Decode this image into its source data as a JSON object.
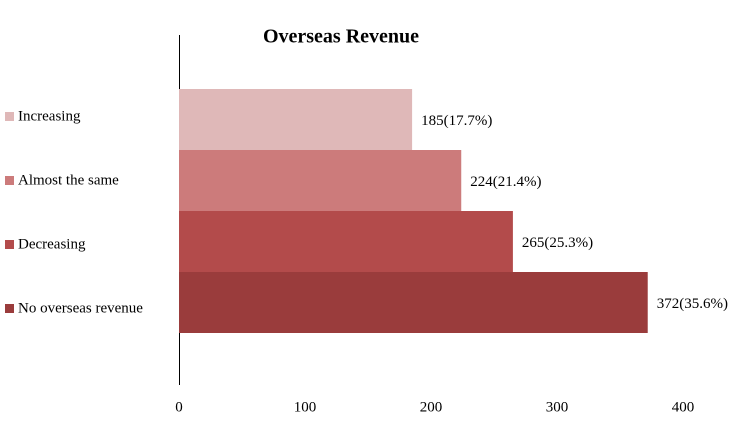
{
  "chart_data": {
    "type": "barh",
    "title": "Overseas Revenue",
    "categories": [
      "Increasing",
      "Almost the same",
      "Decreasing",
      "No overseas revenue"
    ],
    "values": [
      185,
      224,
      265,
      372
    ],
    "value_labels": [
      "185(17.7%)",
      "224(21.4%)",
      "265(25.3%)",
      "372(35.6%)"
    ],
    "colors": [
      "#dfb8b8",
      "#cc7b7b",
      "#b34b4b",
      "#9a3c3c"
    ],
    "xlim": [
      0,
      400
    ],
    "xticks": [
      0,
      100,
      200,
      300,
      400
    ],
    "grid": false
  }
}
